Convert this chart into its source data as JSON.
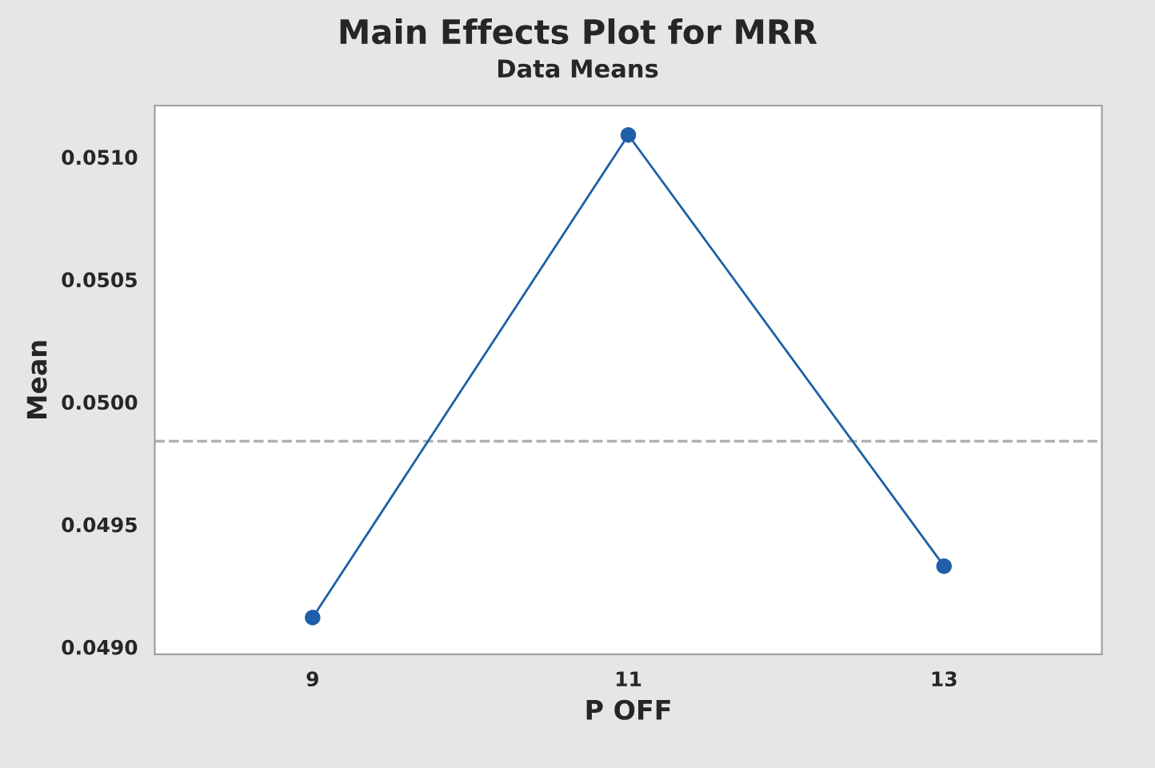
{
  "chart_data": {
    "type": "line",
    "title": "Main Effects Plot for MRR",
    "subtitle": "Data Means",
    "xlabel": "P OFF",
    "ylabel": "Mean",
    "categories": [
      "9",
      "11",
      "13"
    ],
    "series": [
      {
        "color": "#1f5fa8",
        "values": [
          0.04912,
          0.05109,
          0.04933
        ]
      }
    ],
    "marker": "circle",
    "line_style": "solid",
    "ylim": [
      0.04897,
      0.05121
    ],
    "yticks": [
      {
        "value": 0.049,
        "label": "0.0490"
      },
      {
        "value": 0.0495,
        "label": "0.0495"
      },
      {
        "value": 0.05,
        "label": "0.0500"
      },
      {
        "value": 0.0505,
        "label": "0.0505"
      },
      {
        "value": 0.051,
        "label": "0.0510"
      }
    ],
    "ref_lines": [
      {
        "axis": "y",
        "value": 0.04984,
        "color": "#b0b0b0",
        "line_style": "dashed"
      }
    ],
    "grid": false
  }
}
